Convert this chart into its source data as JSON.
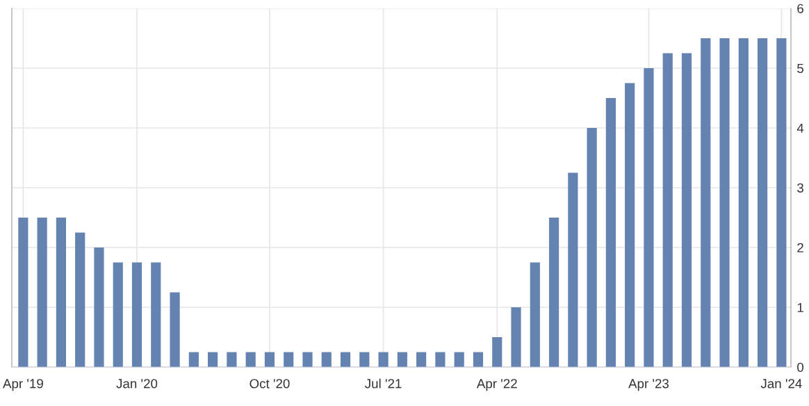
{
  "chart_data": {
    "type": "bar",
    "categories": [
      "Apr '19",
      null,
      null,
      null,
      null,
      null,
      "Jan '20",
      null,
      null,
      null,
      null,
      null,
      null,
      "Oct '20",
      null,
      null,
      null,
      null,
      null,
      "Jul '21",
      null,
      null,
      null,
      null,
      null,
      "Apr '22",
      null,
      null,
      null,
      null,
      null,
      null,
      null,
      "Apr '23",
      null,
      null,
      null,
      null,
      null,
      null,
      "Jan '24"
    ],
    "values": [
      2.5,
      2.5,
      2.5,
      2.25,
      2.0,
      1.75,
      1.75,
      1.75,
      1.25,
      0.25,
      0.25,
      0.25,
      0.25,
      0.25,
      0.25,
      0.25,
      0.25,
      0.25,
      0.25,
      0.25,
      0.25,
      0.25,
      0.25,
      0.25,
      0.25,
      0.5,
      1.0,
      1.75,
      2.5,
      3.25,
      4.0,
      4.5,
      4.75,
      5.0,
      5.25,
      5.25,
      5.5,
      5.5,
      5.5,
      5.5,
      5.5
    ],
    "color": "#6583b0",
    "ylim": [
      0,
      6
    ],
    "yticks": [
      0,
      1,
      2,
      3,
      4,
      5,
      6
    ],
    "grid": true
  }
}
